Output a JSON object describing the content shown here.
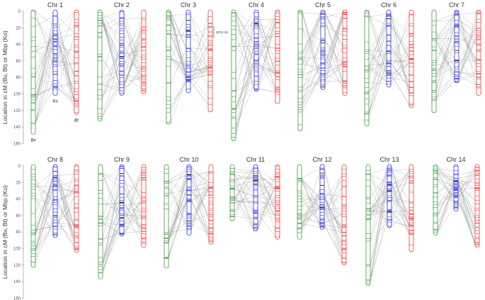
{
  "y_axis": {
    "label": "Location in cM (Bv, Bt) or Mbp (Ko)",
    "ticks": [
      0,
      20,
      40,
      60,
      80,
      100,
      120,
      140,
      160
    ]
  },
  "species": {
    "bv": "Bv",
    "ko": "Ko",
    "bt": "Bt"
  },
  "colors": {
    "bv": "#3a9a3a",
    "ko": "#3030e0",
    "bt": "#f03a3a",
    "link": "#9a9a9a"
  },
  "qtl_label": "QPyr-3S",
  "chromosomes": [
    {
      "name": "Chr 1",
      "bv": 147,
      "ko": 100,
      "bt": 123
    },
    {
      "name": "Chr 2",
      "bv": 131,
      "ko": 100,
      "bt": 98
    },
    {
      "name": "Chr 3",
      "bv": 135,
      "ko": 97,
      "bt": 120
    },
    {
      "name": "Chr 4",
      "bv": 155,
      "ko": 95,
      "bt": 110
    },
    {
      "name": "Chr 5",
      "bv": 143,
      "ko": 93,
      "bt": 100
    },
    {
      "name": "Chr 6",
      "bv": 137,
      "ko": 90,
      "bt": 115
    },
    {
      "name": "Chr 7",
      "bv": 121,
      "ko": 85,
      "bt": 100
    },
    {
      "name": "Chr 8",
      "bv": 121,
      "ko": 85,
      "bt": 103
    },
    {
      "name": "Chr 9",
      "bv": 135,
      "ko": 83,
      "bt": 97
    },
    {
      "name": "Chr 10",
      "bv": 122,
      "ko": 82,
      "bt": 93
    },
    {
      "name": "Chr 11",
      "bv": 65,
      "ko": 77,
      "bt": 87
    },
    {
      "name": "Chr 12",
      "bv": 87,
      "ko": 75,
      "bt": 118
    },
    {
      "name": "Chr 13",
      "bv": 143,
      "ko": 73,
      "bt": 102
    },
    {
      "name": "Chr 14",
      "bv": 82,
      "ko": 53,
      "bt": 97
    }
  ]
}
